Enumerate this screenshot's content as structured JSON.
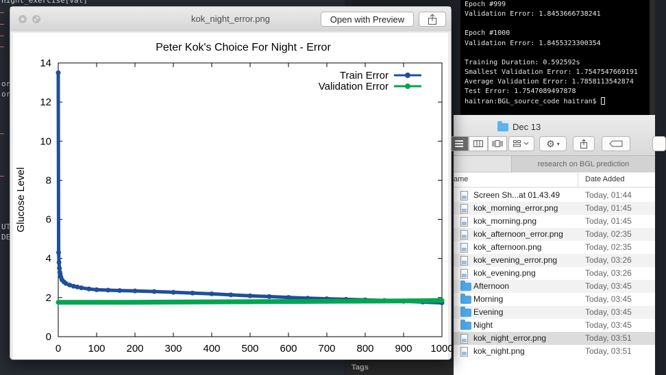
{
  "editor": {
    "lines": [
      {
        "text": "night_exercise[val]",
        "top": -6
      },
      {
        "text": "or",
        "top": 116
      },
      {
        "text": "or",
        "top": 131
      },
      {
        "text": "UT",
        "top": 325
      },
      {
        "text": "DE",
        "top": 340
      }
    ],
    "markers": [
      18,
      35,
      52,
      68,
      195,
      257
    ]
  },
  "terminal": {
    "lines": [
      "Epoch #999",
      "Validation Error: 1.8453666738241",
      "",
      "Epoch #1000",
      "Validation Error: 1.8455323300354",
      "",
      "Training Duration: 0.592592s",
      "Smallest Validation Error: 1.7547547669191",
      "Average Validation Error: 1.7858113542874",
      "Test Error: 1.7547089497878"
    ],
    "prompt": "haitran:BGL_source_code haitran$ "
  },
  "finder": {
    "title": "Dec 13",
    "tab_label": "research on BGL prediction",
    "col_name": "ame",
    "col_date": "Date Added",
    "files": [
      {
        "name": "Screen Sh...at 01.43.49",
        "date": "Today, 01:44",
        "kind": "file"
      },
      {
        "name": "kok_morning_error.png",
        "date": "Today, 01:45",
        "kind": "file"
      },
      {
        "name": "kok_morning.png",
        "date": "Today, 01:45",
        "kind": "file"
      },
      {
        "name": "kok_afternoon_error.png",
        "date": "Today, 02:35",
        "kind": "file"
      },
      {
        "name": "kok_afternoon.png",
        "date": "Today, 02:35",
        "kind": "file"
      },
      {
        "name": "kok_evening_error.png",
        "date": "Today, 03:26",
        "kind": "file"
      },
      {
        "name": "kok_evening.png",
        "date": "Today, 03:26",
        "kind": "file"
      },
      {
        "name": "Afternoon",
        "date": "Today, 03:45",
        "kind": "folder"
      },
      {
        "name": "Morning",
        "date": "Today, 03:45",
        "kind": "folder"
      },
      {
        "name": "Evening",
        "date": "Today, 03:45",
        "kind": "folder"
      },
      {
        "name": "Night",
        "date": "Today, 03:45",
        "kind": "folder"
      },
      {
        "name": "kok_night_error.png",
        "date": "Today, 03:51",
        "kind": "file",
        "selected": true
      },
      {
        "name": "kok_night.png",
        "date": "Today, 03:51",
        "kind": "file"
      }
    ],
    "tags_label": "Tags"
  },
  "preview": {
    "title": "kok_night_error.png",
    "open_with_label": "Open with Preview"
  },
  "chart_data": {
    "type": "line",
    "title": "Peter Kok's Choice For Night - Error",
    "xlabel": "",
    "ylabel": "Glucose Level",
    "xlim": [
      0,
      1000
    ],
    "ylim": [
      0,
      14
    ],
    "xticks": [
      0,
      100,
      200,
      300,
      400,
      500,
      600,
      700,
      800,
      900,
      1000
    ],
    "yticks": [
      0,
      2,
      4,
      6,
      8,
      10,
      12,
      14
    ],
    "grid": false,
    "legend_position": "top-right",
    "series": [
      {
        "name": "Train Error",
        "color": "#1f4e9c",
        "x": [
          0,
          1,
          2,
          3,
          4,
          5,
          7,
          10,
          15,
          20,
          30,
          40,
          50,
          60,
          80,
          100,
          130,
          160,
          200,
          250,
          300,
          350,
          400,
          450,
          500,
          550,
          600,
          650,
          700,
          750,
          800,
          850,
          900,
          950,
          1000
        ],
        "values": [
          13.5,
          4.3,
          3.8,
          3.5,
          3.3,
          3.2,
          3.05,
          2.9,
          2.8,
          2.72,
          2.64,
          2.58,
          2.54,
          2.5,
          2.44,
          2.4,
          2.38,
          2.36,
          2.34,
          2.31,
          2.27,
          2.23,
          2.19,
          2.14,
          2.09,
          2.05,
          2.01,
          1.97,
          1.94,
          1.91,
          1.88,
          1.85,
          1.81,
          1.77,
          1.73
        ]
      },
      {
        "name": "Validation Error",
        "color": "#00a651",
        "x": [
          0,
          100,
          200,
          300,
          400,
          500,
          600,
          700,
          800,
          900,
          1000
        ],
        "values": [
          1.76,
          1.76,
          1.76,
          1.77,
          1.78,
          1.79,
          1.8,
          1.81,
          1.82,
          1.83,
          1.85
        ]
      }
    ]
  }
}
